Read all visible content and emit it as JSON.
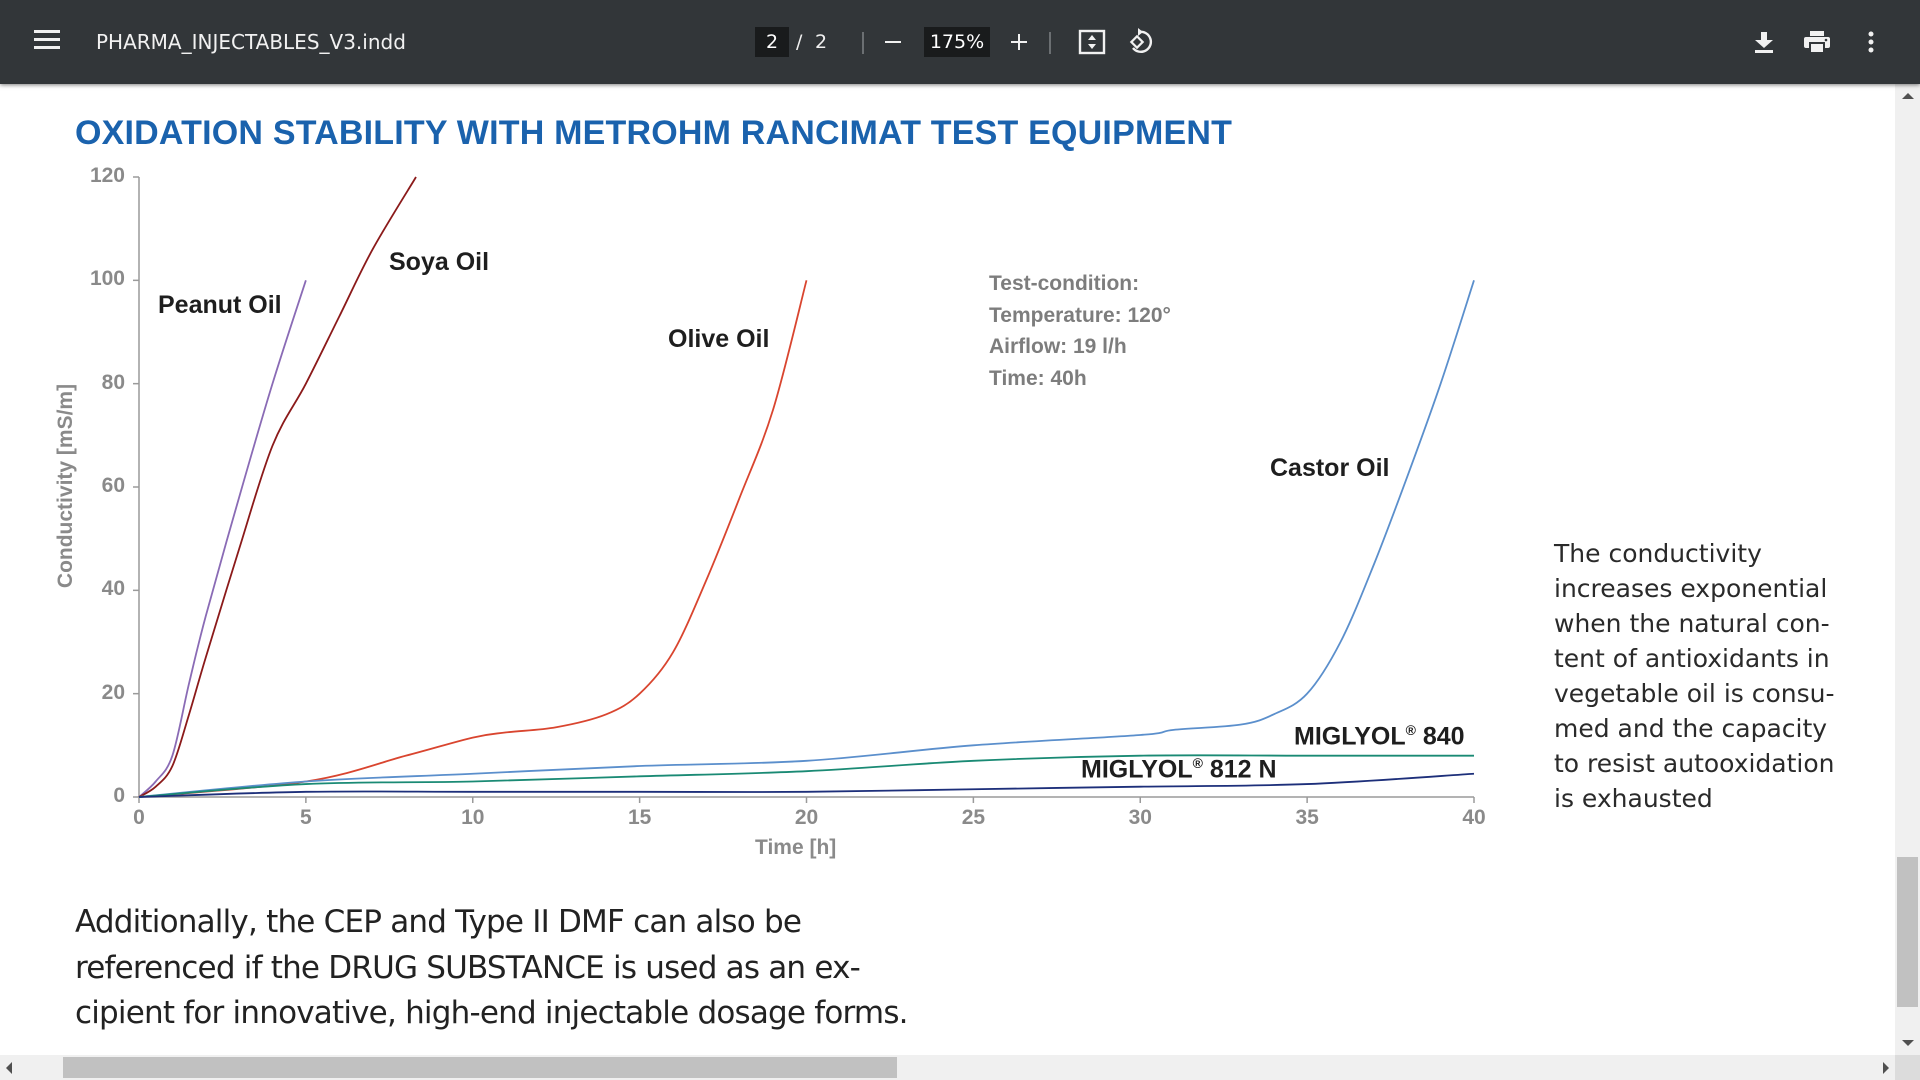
{
  "toolbar": {
    "title": "PHARMA_INJECTABLES_V3.indd",
    "current_page": "2",
    "page_separator": "/",
    "total_pages": "2",
    "zoom_level": "175%",
    "icons": {
      "menu": "hamburger-menu-icon",
      "zoom_out": "minus-icon",
      "zoom_in": "plus-icon",
      "fit": "fit-to-page-icon",
      "rotate": "rotate-counterclockwise-icon",
      "download": "download-icon",
      "print": "print-icon",
      "more": "more-vertical-icon"
    },
    "colors": {
      "background": "#323639",
      "input_background": "#191b1c",
      "text": "#f1f1f1"
    }
  },
  "document": {
    "heading": "OXIDATION STABILITY WITH METROHM RANCIMAT TEST EQUIPMENT",
    "heading_color": "#1a62ad",
    "test_condition": {
      "line1": "Test-condition:",
      "line2": "Temperature: 120°",
      "line3": "Airflow: 19 l/h",
      "line4": "Time: 40h"
    },
    "side_text": {
      "lines": [
        "The conductivity",
        "increases exponential",
        "when the natural con-",
        "tent of antioxidants in",
        "vegetable oil is consu-",
        "med and the capacity",
        "to resist autooxidation",
        "is exhausted"
      ]
    },
    "bottom_text": {
      "lines": [
        "Additionally, the CEP and Type II DMF can also be",
        "referenced if the DRUG SUBSTANCE is used as an ex-",
        "cipient for innovative, high-end injectable dosage forms."
      ]
    }
  },
  "chart_data": {
    "type": "line",
    "title": "OXIDATION STABILITY WITH METROHM RANCIMAT TEST EQUIPMENT",
    "xlabel": "Time [h]",
    "ylabel": "Conductivity [mS/m]",
    "xlim": [
      0,
      40
    ],
    "ylim": [
      0,
      120
    ],
    "xticks": [
      0,
      5,
      10,
      15,
      20,
      25,
      30,
      35,
      40
    ],
    "yticks": [
      0,
      20,
      40,
      60,
      80,
      100,
      120
    ],
    "grid": false,
    "legend": "inline labels",
    "annotations": [
      "Test-condition:",
      "Temperature: 120°",
      "Airflow: 19 l/h",
      "Time: 40h"
    ],
    "series": [
      {
        "name": "Peanut Oil",
        "color": "#8a6bb5",
        "x": [
          0,
          0.5,
          1,
          1.5,
          2,
          3,
          4,
          5
        ],
        "values": [
          0,
          3,
          8,
          22,
          35,
          58,
          80,
          100
        ]
      },
      {
        "name": "Soya Oil",
        "color": "#8b1a1a",
        "x": [
          0,
          0.5,
          1,
          1.5,
          2,
          3,
          4,
          5,
          6,
          7,
          8.3
        ],
        "values": [
          0,
          2,
          6,
          16,
          27,
          48,
          68,
          80,
          93,
          106,
          120
        ]
      },
      {
        "name": "Olive Oil",
        "color": "#d9452f",
        "x": [
          0,
          5,
          8,
          10,
          11,
          12.5,
          14,
          15,
          16,
          17,
          18,
          19,
          20
        ],
        "values": [
          0,
          3,
          8,
          11.5,
          12.5,
          13.5,
          16,
          20,
          28,
          42,
          58,
          75,
          100
        ]
      },
      {
        "name": "Castor Oil",
        "color": "#5b8fcc",
        "x": [
          0,
          5,
          10,
          15,
          20,
          25,
          30,
          31,
          33,
          34,
          35,
          36,
          37,
          38,
          39,
          40
        ],
        "values": [
          0,
          3,
          4.5,
          6,
          7,
          10,
          12,
          13,
          14,
          16,
          20,
          30,
          45,
          62,
          80,
          100
        ]
      },
      {
        "name": "MIGLYOL® 840",
        "color": "#1a8a74",
        "x": [
          0,
          5,
          10,
          15,
          20,
          25,
          30,
          35,
          40
        ],
        "values": [
          0,
          2.5,
          3,
          4,
          5,
          7,
          8,
          8,
          8
        ]
      },
      {
        "name": "MIGLYOL® 812 N",
        "color": "#1d2f7a",
        "x": [
          0,
          5,
          10,
          15,
          20,
          25,
          30,
          35,
          40
        ],
        "values": [
          0,
          1,
          1,
          1,
          1,
          1.5,
          2,
          2.5,
          4.5
        ]
      }
    ]
  },
  "chart_labels": {
    "peanut": "Peanut Oil",
    "soya": "Soya Oil",
    "olive": "Olive Oil",
    "castor": "Castor Oil",
    "miglyol840_name": "MIGLYOL",
    "miglyol840_mark": "®",
    "miglyol840_num": " 840",
    "miglyol812_name": "MIGLYOL",
    "miglyol812_mark": "®",
    "miglyol812_num": " 812 N"
  }
}
